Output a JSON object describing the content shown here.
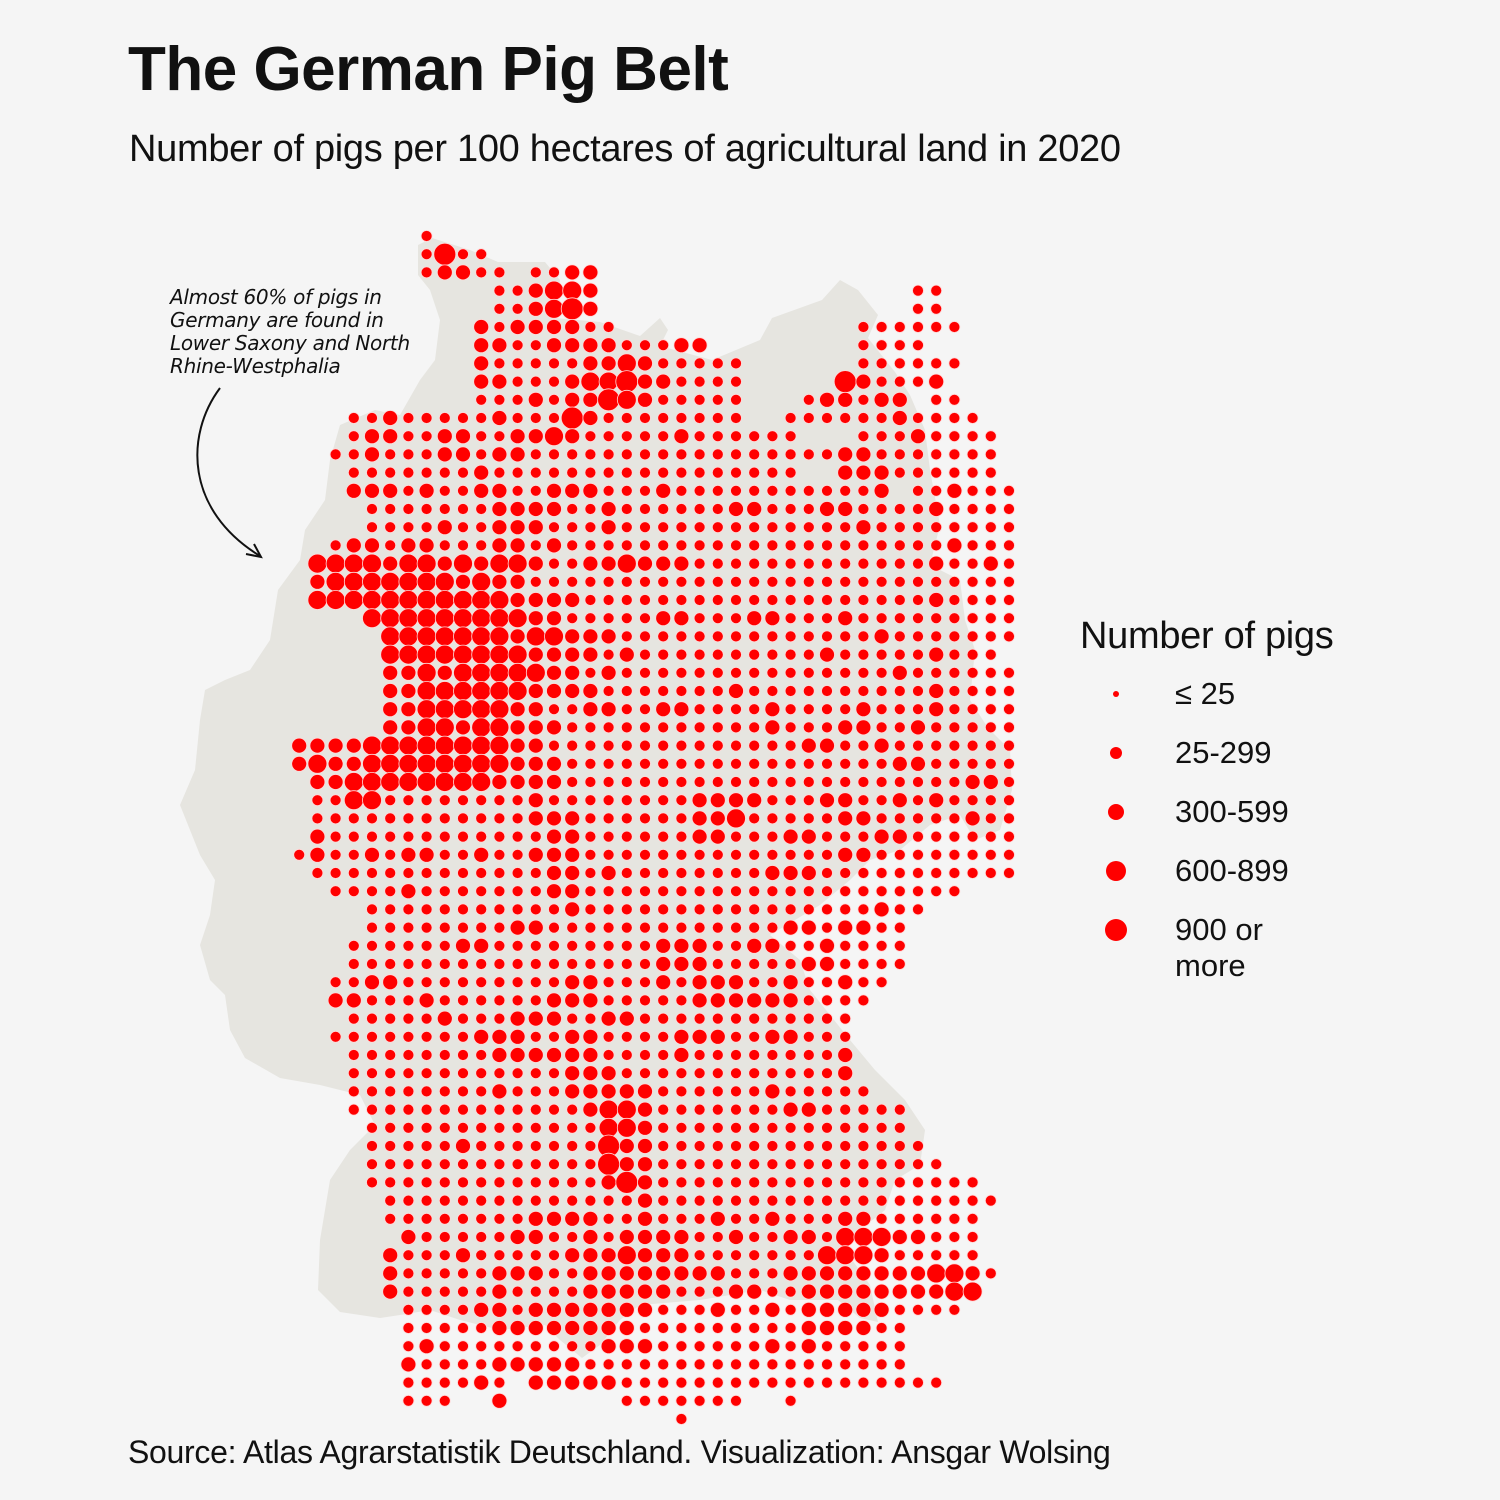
{
  "header": {
    "title": "The German Pig Belt",
    "subtitle": "Number of pigs per 100 hectares of agricultural land in 2020"
  },
  "annotation": {
    "text_lines": [
      "Almost 60% of pigs in",
      "Germany are found in",
      "Lower Saxony and North",
      "Rhine-Westphalia"
    ]
  },
  "legend": {
    "title": "Number of pigs",
    "items": [
      {
        "label": "≤ 25",
        "class": 1
      },
      {
        "label": "25-299",
        "class": 2
      },
      {
        "label": "300-599",
        "class": 3
      },
      {
        "label": "600-899",
        "class": 4
      },
      {
        "label": "900 or more",
        "class": 5
      }
    ]
  },
  "colors": {
    "dot": "#ff0000",
    "land": "#e6e5e0",
    "background": "#f5f5f5",
    "text": "#111111"
  },
  "footer": {
    "source": "Source: Atlas Agrarstatistik Deutschland. Visualization: Ansgar Wolsing"
  },
  "map_data": {
    "type": "dot-grid",
    "region": "Germany",
    "metric": "Number of pigs per 100 hectares of agricultural land",
    "year": 2020,
    "class_scale": {
      "1": "≤ 25",
      "2": "25-299",
      "3": "300-599",
      "4": "600-899",
      "5": "900 or more"
    },
    "grid_rows": [
      "0000000000000200000000000000000000000000000000",
      "0000000000000252200000000000000000000000000000",
      "0000000000000233220223300000000000000000000000",
      "0000000000000000022344300000000000000000220000",
      "0000000000000000022345300000000000000000220000",
      "0000000000000000323333220000000000000222222000",
      "0000000000000000332233332223300000000222200000",
      "0000000000000000322222334322222000000222222000",
      "0000000000000000332223445332222000005322230000",
      "0000000000000000222323354322222000233233022000",
      "0000000002232222232225322222222002222223222200",
      "0000000002332233223343222223222222000222322220",
      "0000000022322233233222222222222222223322222220",
      "0000000002222222322222222222222222003332222220",
      "0000000003332322332233322232222222222230223222",
      "0000000000222222233332232222223322233222232222",
      "0000000000222232233322232222222222222322222222",
      "0000000023323322233232222222222222222222223222",
      "0000000444434434344322334333222222222222232232",
      "0000000344444443433222222222222222222222222222",
      "0000000444444444443333222222222222222222232222",
      "0000000000444444444332222233222332223222222222",
      "0000000000044444443443332222222222222232222222",
      "0000000000044444444333323222222222232222232220",
      "0000000000033434444433232222222222222223222222",
      "0000000000033444444333322222223222222222232222",
      "0000000000033444443322332233222232222322232222",
      "0000000000033443443332222222222232223322322222",
      "0000003333444444443322222222222222332232222222",
      "0000003433444444443332222222222222222223322222",
      "0000000334444444433332222222222222222222222332",
      "0000000224422222222322222222333322233223232222",
      "0000000222222222222333222222334222223322222322",
      "0000000322222222222233222222332223322233222222",
      "0000002322323322322333222222222222223322222222",
      "0000000222222222222233232222222233322222222222",
      "0000000022223222222233222222222222222222222000",
      "0000000000222222222223222222222222222232200000",
      "0000000000222222223322222222222223323322000000",
      "0000000002222223322222222233322332232222000000",
      "0000000002222222222222222233322222332222000000",
      "0000000022332222222223322232333223223220000000",
      "0000000033222322222233322222333333222200000000",
      "0000000002222232223332233222222222222000000000",
      "0000000022222222333223322223332233222000000000",
      "0000000002222222233333322223222222223000000000",
      "0000000002222222222223332222222222223000000000",
      "0000000002222222232223333322222232222200000000",
      "0000000002222222222222344322222223322222000000",
      "0000000000222222222222244322222222222222000000",
      "0000000000222223222222253322222222222222200000",
      "0000000000222222222222253322222222222222220000",
      "0000000000222222222222235322222222222222222200",
      "0000000000022222222222222322222222222222222220",
      "0000000000022222222333322322232232223322222200",
      "0000000000003222223322323333223223324443322200",
      "0000000000032223222223334333222222244432222200",
      "0000000000032222233322333333332223333333344320",
      "0000000000032222232222333332223322333333334400",
      "0000000000002222332333333322232232333332222000",
      "0000000000002222233333333222222222333322000000",
      "0000000000002322222222233322222232322222000000",
      "0000000000003222233333222222222222222222000000",
      "0000000000002222320333332222222222222222220000",
      "0000000000002220030000002222222002000000000000",
      "0000000000000000000000000002000000000000000000"
    ]
  }
}
